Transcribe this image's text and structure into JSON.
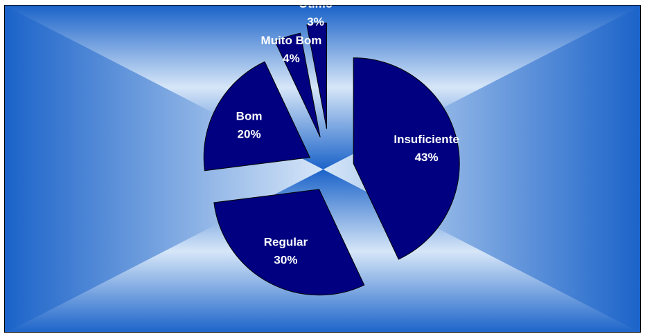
{
  "chart_data": {
    "type": "pie",
    "title": "",
    "categories": [
      "Insuficiente",
      "Regular",
      "Bom",
      "Muito Bom",
      "Ótimo"
    ],
    "values": [
      43,
      30,
      20,
      4,
      3
    ],
    "value_labels": [
      "43%",
      "30%",
      "20%",
      "4%",
      "3%"
    ],
    "exploded": true,
    "legend": "none",
    "colors": {
      "slice_fill": "#000080",
      "slice_stroke": "#000000",
      "label_text": "#ffffff",
      "background_center": "#d6e6f8",
      "background_mid": "#8fb5e6",
      "background_edge": "#1b63c9",
      "frame_border": "#000000"
    }
  }
}
